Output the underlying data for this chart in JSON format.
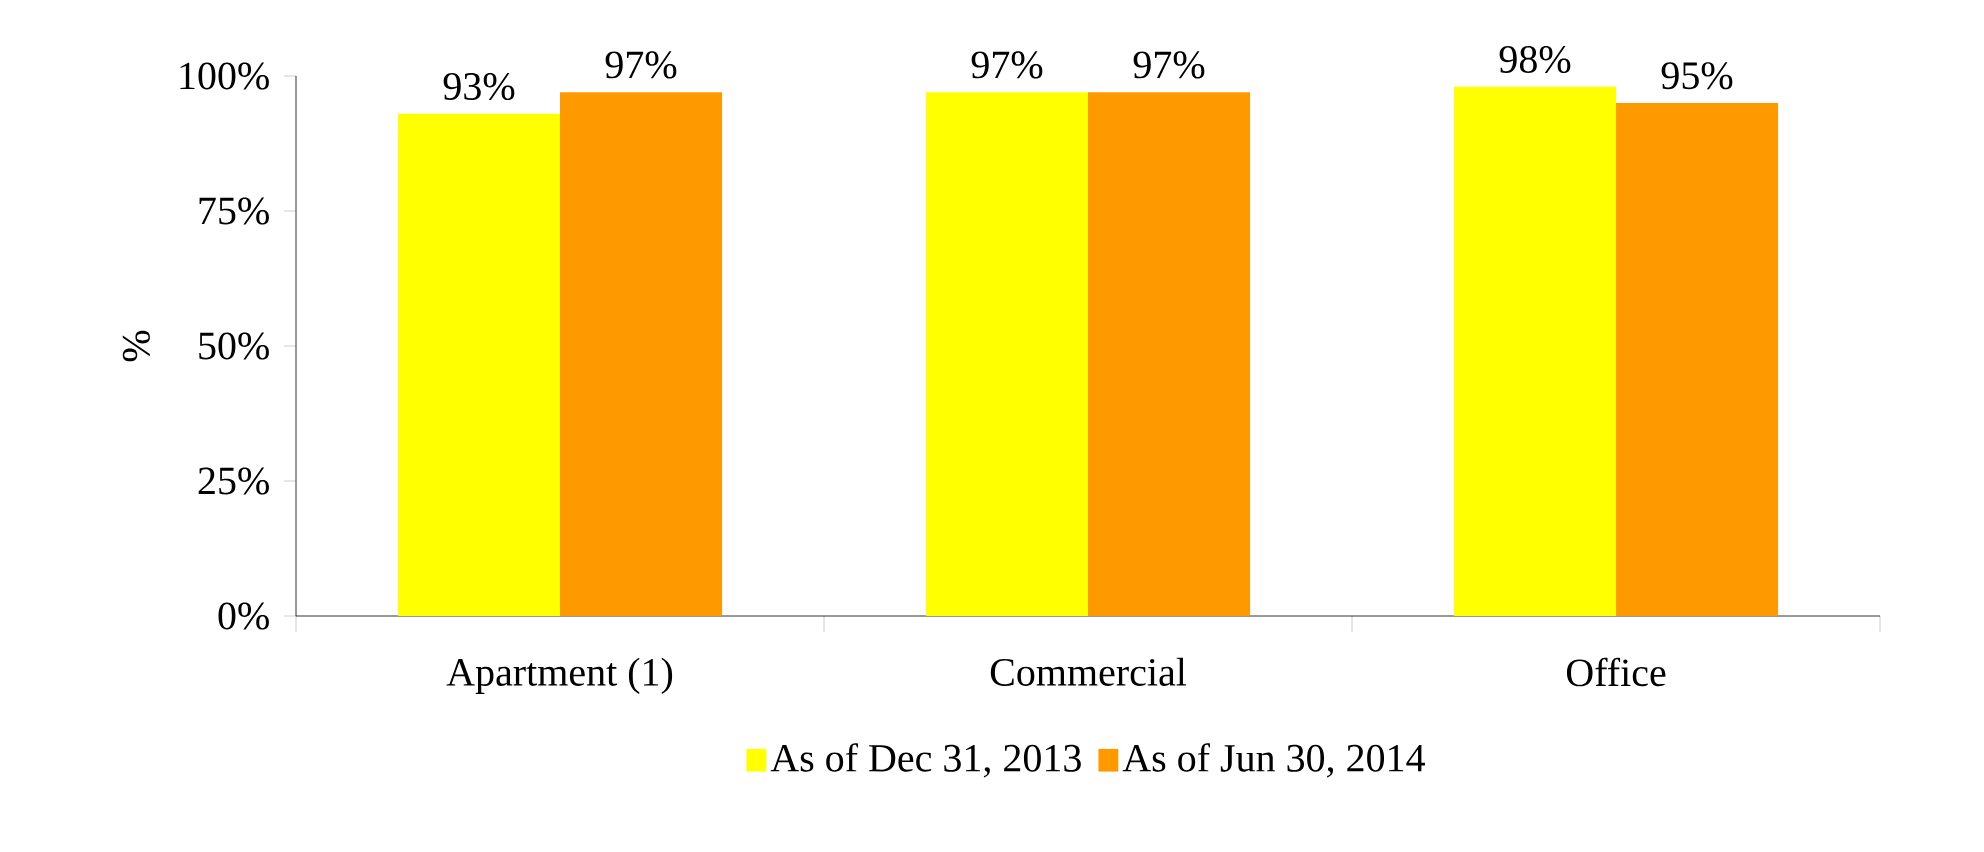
{
  "chart_data": {
    "type": "bar",
    "ylabel": "%",
    "categories": [
      "Apartment (1)",
      "Commercial",
      "Office"
    ],
    "series": [
      {
        "name": "As of Dec 31, 2013",
        "color": "#ffff00",
        "values": [
          93,
          97,
          98
        ],
        "value_labels": [
          "93%",
          "97%",
          "98%"
        ]
      },
      {
        "name": "As of Jun 30, 2014",
        "color": "#ff9900",
        "values": [
          97,
          97,
          95
        ],
        "value_labels": [
          "97%",
          "97%",
          "95%"
        ]
      }
    ],
    "ylim": [
      0,
      100
    ],
    "yticks": [
      {
        "value": 0,
        "label": "0%"
      },
      {
        "value": 25,
        "label": "25%"
      },
      {
        "value": 50,
        "label": "50%"
      },
      {
        "value": 75,
        "label": "75%"
      },
      {
        "value": 100,
        "label": "100%"
      }
    ],
    "grid": false,
    "legend": "bottom"
  }
}
